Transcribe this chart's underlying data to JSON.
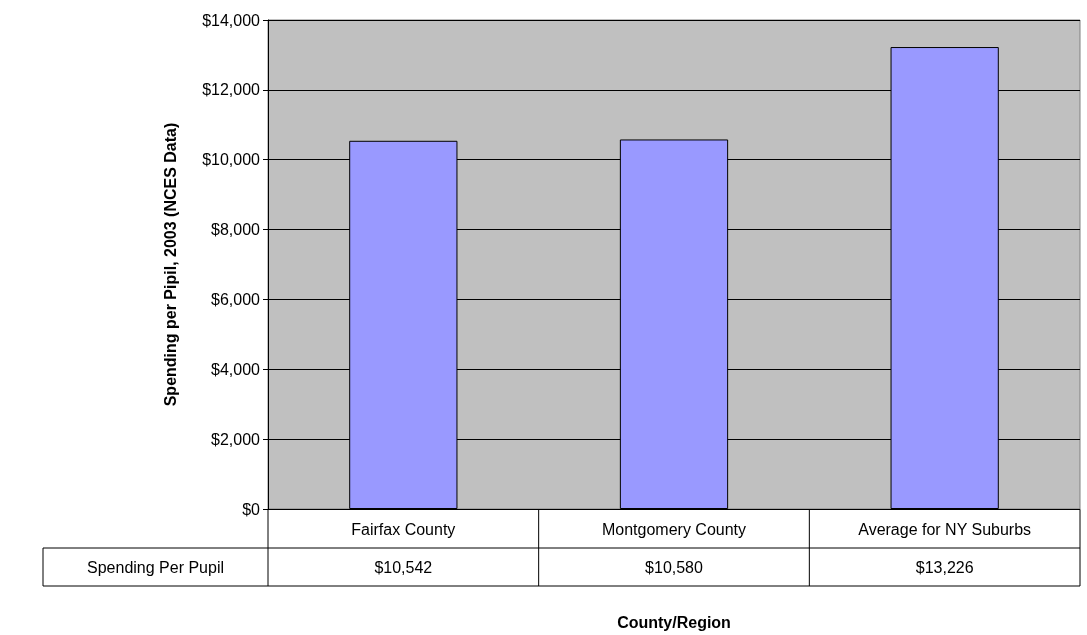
{
  "chart_data": {
    "type": "bar",
    "ylabel": "Spending per Pipil, 2003 (NCES Data)",
    "xlabel": "County/Region",
    "categories": [
      "Fairfax County",
      "Montgomery County",
      "Average for NY Suburbs"
    ],
    "series": [
      {
        "name": "Spending Per Pupil",
        "color": "#9999ff",
        "values": [
          10542,
          10580,
          13226
        ],
        "value_labels": [
          "$10,542",
          "$10,580",
          "$13,226"
        ]
      }
    ],
    "ylim": [
      0,
      14000
    ],
    "yticks": [
      {
        "value": 0,
        "label": "$0"
      },
      {
        "value": 2000,
        "label": "$2,000"
      },
      {
        "value": 4000,
        "label": "$4,000"
      },
      {
        "value": 6000,
        "label": "$6,000"
      },
      {
        "value": 8000,
        "label": "$8,000"
      },
      {
        "value": 10000,
        "label": "$10,000"
      },
      {
        "value": 12000,
        "label": "$12,000"
      },
      {
        "value": 14000,
        "label": "$14,000"
      }
    ],
    "grid": "y",
    "legend": false
  }
}
